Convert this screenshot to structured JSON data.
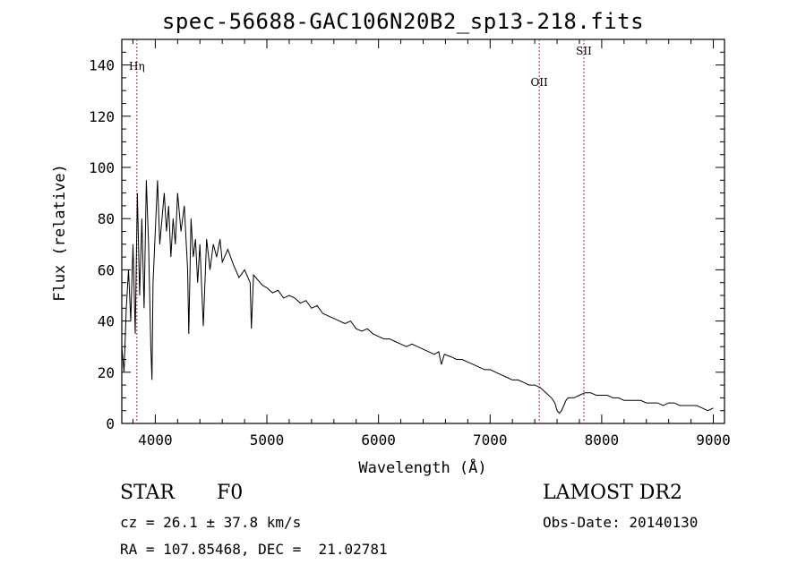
{
  "header": {
    "file_title": "spec-56688-GAC106N20B2_sp13-218.fits"
  },
  "chart_data": {
    "type": "line",
    "title": "spec-56688-GAC106N20B2_sp13-218.fits",
    "xlabel": "Wavelength (Å)",
    "ylabel": "Flux (relative)",
    "xlim": [
      3700,
      9100
    ],
    "ylim": [
      0,
      150
    ],
    "xticks": [
      4000,
      5000,
      6000,
      7000,
      8000,
      9000
    ],
    "yticks": [
      0,
      20,
      40,
      60,
      80,
      100,
      120,
      140
    ],
    "line_color": "#000000",
    "marker_color": "#a0302a",
    "series": [
      {
        "x": [
          3700,
          3720,
          3740,
          3760,
          3780,
          3800,
          3820,
          3840,
          3860,
          3880,
          3900,
          3920,
          3940,
          3960,
          3970,
          3980,
          4000,
          4020,
          4040,
          4060,
          4080,
          4100,
          4120,
          4140,
          4160,
          4180,
          4200,
          4230,
          4260,
          4290,
          4300,
          4320,
          4340,
          4360,
          4380,
          4400,
          4430,
          4460,
          4490,
          4520,
          4550,
          4580,
          4600,
          4650,
          4700,
          4750,
          4800,
          4850,
          4861,
          4880,
          4920,
          4960,
          5000,
          5050,
          5100,
          5150,
          5200,
          5250,
          5300,
          5350,
          5400,
          5450,
          5500,
          5550,
          5600,
          5650,
          5700,
          5750,
          5800,
          5850,
          5900,
          5950,
          6000,
          6050,
          6100,
          6150,
          6200,
          6250,
          6300,
          6350,
          6400,
          6450,
          6500,
          6540,
          6563,
          6590,
          6650,
          6700,
          6750,
          6800,
          6850,
          6900,
          6950,
          7000,
          7050,
          7100,
          7150,
          7200,
          7250,
          7300,
          7350,
          7400,
          7450,
          7500,
          7550,
          7580,
          7600,
          7620,
          7640,
          7660,
          7680,
          7700,
          7720,
          7750,
          7800,
          7850,
          7900,
          7950,
          8000,
          8050,
          8100,
          8150,
          8200,
          8250,
          8300,
          8350,
          8400,
          8450,
          8500,
          8550,
          8600,
          8650,
          8700,
          8750,
          8800,
          8850,
          8900,
          8950,
          9000
        ],
        "values": [
          30,
          20,
          45,
          60,
          40,
          70,
          35,
          90,
          50,
          80,
          45,
          95,
          70,
          30,
          17,
          55,
          75,
          95,
          70,
          80,
          90,
          75,
          85,
          65,
          80,
          70,
          90,
          75,
          85,
          60,
          35,
          80,
          65,
          72,
          55,
          70,
          38,
          72,
          60,
          70,
          65,
          72,
          63,
          68,
          62,
          57,
          60,
          55,
          37,
          58,
          56,
          54,
          53,
          51,
          52,
          49,
          50,
          49,
          47,
          48,
          45,
          46,
          43,
          42,
          41,
          40,
          39,
          40,
          37,
          36,
          37,
          35,
          34,
          33,
          33,
          32,
          31,
          30,
          31,
          30,
          29,
          28,
          27,
          28,
          23,
          27,
          26,
          25,
          25,
          24,
          23,
          22,
          21,
          21,
          20,
          19,
          18,
          17,
          17,
          16,
          15,
          15,
          14,
          12,
          10,
          8,
          5,
          4,
          5,
          7,
          9,
          10,
          10,
          10,
          11,
          12,
          12,
          11,
          11,
          11,
          10,
          10,
          9,
          9,
          9,
          9,
          8,
          8,
          8,
          7,
          8,
          8,
          7,
          7,
          7,
          7,
          6,
          5,
          6
        ]
      }
    ],
    "line_markers": [
      {
        "label": "Hη",
        "wavelength": 3835
      },
      {
        "label": "OII",
        "wavelength": 7440
      },
      {
        "label": "SII",
        "wavelength": 7840
      }
    ]
  },
  "info": {
    "class": "STAR",
    "subclass": "F0",
    "survey": "LAMOST DR2",
    "cz": "cz = 26.1 ± 37.8 km/s",
    "obs_date": "Obs-Date: 20140130",
    "coords": "RA = 107.85468, DEC =  21.02781"
  }
}
